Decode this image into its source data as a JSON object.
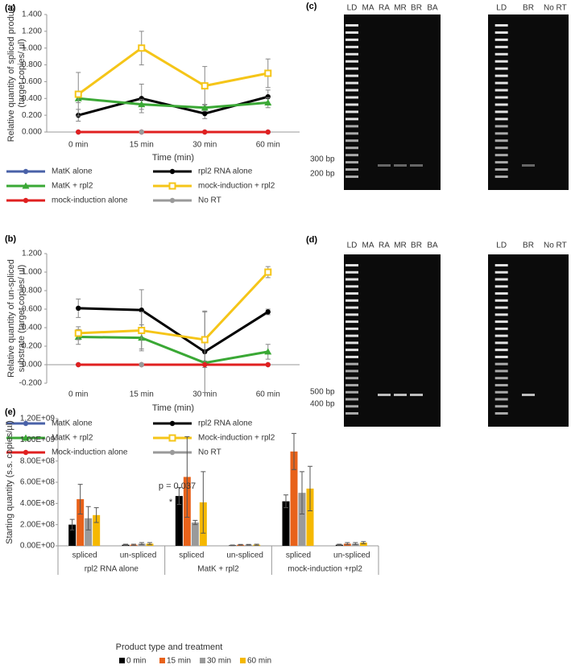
{
  "chart_data": [
    {
      "type": "line",
      "label": "(a)",
      "xlabel": "Time (min)",
      "ylabel": [
        "Relative quantity of spliced product",
        "(target copies/ µl)"
      ],
      "categories": [
        "0 min",
        "15 min",
        "30 min",
        "60 min"
      ],
      "ylim": [
        0,
        1.4
      ],
      "yticks": [
        {
          "value": 0,
          "label": "0.000"
        },
        {
          "value": 0.2,
          "label": "0.200"
        },
        {
          "value": 0.4,
          "label": "0.400"
        },
        {
          "value": 0.6,
          "label": "0.600"
        },
        {
          "value": 0.8,
          "label": "0.800"
        },
        {
          "value": 1.0,
          "label": "1.000"
        },
        {
          "value": 1.2,
          "label": "1.200"
        },
        {
          "value": 1.4,
          "label": "1.400"
        }
      ],
      "grid": false,
      "series": [
        {
          "name": "MatK alone",
          "color": "#4a62a8",
          "marker": "circle",
          "values": [
            0,
            0,
            0,
            0
          ]
        },
        {
          "name": "rpl2 RNA alone",
          "color": "#000000",
          "marker": "circle",
          "values": [
            0.2,
            0.4,
            0.22,
            0.42
          ],
          "errors": [
            0.07,
            0.17,
            0.06,
            0.08
          ]
        },
        {
          "name": "MatK + rpl2",
          "color": "#3aa835",
          "marker": "triangle",
          "values": [
            0.4,
            0.33,
            0.29,
            0.35
          ],
          "errors": [
            0.05,
            0.06,
            0.04,
            0.06
          ]
        },
        {
          "name": "mock-induction + rpl2",
          "color": "#f5c518",
          "marker": "square",
          "values": [
            0.45,
            1.0,
            0.55,
            0.7
          ],
          "errors": [
            0.26,
            0.2,
            0.23,
            0.17
          ]
        },
        {
          "name": "mock-induction alone",
          "color": "#e02020",
          "marker": "circle",
          "values": [
            0,
            0,
            0,
            0
          ]
        },
        {
          "name": "No RT",
          "color": "#9a9a9a",
          "marker": "circle",
          "values": [
            null,
            0,
            null,
            null
          ]
        }
      ]
    },
    {
      "type": "line",
      "label": "(b)",
      "xlabel": "Time (min)",
      "ylabel": [
        "Relative quantity of un-spliced",
        "substrate (target copies/ µl)"
      ],
      "categories": [
        "0 min",
        "15 min",
        "30 min",
        "60 min"
      ],
      "ylim": [
        -0.2,
        1.2
      ],
      "yticks": [
        {
          "value": -0.2,
          "label": "-0.200"
        },
        {
          "value": 0,
          "label": "0.000"
        },
        {
          "value": 0.2,
          "label": "0.200"
        },
        {
          "value": 0.4,
          "label": "0.400"
        },
        {
          "value": 0.6,
          "label": "0.600"
        },
        {
          "value": 0.8,
          "label": "0.800"
        },
        {
          "value": 1.0,
          "label": "1.000"
        },
        {
          "value": 1.2,
          "label": "1.200"
        }
      ],
      "grid": false,
      "series": [
        {
          "name": "MatK alone",
          "color": "#4a62a8",
          "marker": "circle",
          "values": [
            0,
            0,
            0,
            0
          ]
        },
        {
          "name": "rpl2 RNA alone",
          "color": "#000000",
          "marker": "circle",
          "values": [
            0.61,
            0.59,
            0.14,
            0.57
          ],
          "errors": [
            0.1,
            0.22,
            0.44,
            0.03
          ]
        },
        {
          "name": "MatK + rpl2",
          "color": "#3aa835",
          "marker": "triangle",
          "values": [
            0.3,
            0.29,
            0.02,
            0.14
          ],
          "errors": [
            0.08,
            0.14,
            0.02,
            0.08
          ]
        },
        {
          "name": "Mock-induction + rpl2",
          "color": "#f5c518",
          "marker": "square",
          "values": [
            0.34,
            0.37,
            0.27,
            1.0
          ],
          "errors": [
            0.07,
            0.2,
            0.3,
            0.06
          ]
        },
        {
          "name": "Mock-induction alone",
          "color": "#e02020",
          "marker": "circle",
          "values": [
            0,
            0,
            0,
            0
          ]
        },
        {
          "name": "No RT",
          "color": "#9a9a9a",
          "marker": "circle",
          "values": [
            null,
            0,
            null,
            null
          ]
        }
      ]
    },
    {
      "type": "bar",
      "label": "(e)",
      "xlabel": "Product type and treatment",
      "ylabel": "Starting quantity (s.s. copies/µl)",
      "categories": [
        "spliced",
        "un-spliced",
        "spliced",
        "un-spliced",
        "spliced",
        "un-spliced"
      ],
      "groups": [
        "rpl2 RNA alone",
        "MatK + rpl2",
        "mock-induction +rpl2"
      ],
      "ylim": [
        0,
        1200000000
      ],
      "yticks": [
        {
          "value": 0,
          "label": "0.00E+00"
        },
        {
          "value": 200000000,
          "label": "2.00E+08"
        },
        {
          "value": 400000000,
          "label": "4.00E+08"
        },
        {
          "value": 600000000,
          "label": "6.00E+08"
        },
        {
          "value": 800000000,
          "label": "8.00E+08"
        },
        {
          "value": 1000000000,
          "label": "1.00E+09"
        },
        {
          "value": 1200000000,
          "label": "1.20E+09"
        }
      ],
      "annotations": [
        "p = 0.037",
        "*"
      ],
      "series": [
        {
          "name": "0 min",
          "color": "#000000",
          "values": [
            200000000,
            10000000,
            470000000,
            5000000,
            420000000,
            10000000
          ],
          "errors": [
            50000000,
            5000000,
            80000000,
            3000000,
            60000000,
            5000000
          ]
        },
        {
          "name": "15 min",
          "color": "#e8621a",
          "values": [
            440000000,
            10000000,
            650000000,
            10000000,
            890000000,
            20000000
          ],
          "errors": [
            140000000,
            5000000,
            380000000,
            3000000,
            170000000,
            10000000
          ]
        },
        {
          "name": "30 min",
          "color": "#9a9a9a",
          "values": [
            260000000,
            20000000,
            220000000,
            10000000,
            500000000,
            20000000
          ],
          "errors": [
            110000000,
            10000000,
            20000000,
            3000000,
            200000000,
            10000000
          ]
        },
        {
          "name": "60 min",
          "color": "#f5b800",
          "values": [
            290000000,
            20000000,
            410000000,
            10000000,
            540000000,
            30000000
          ],
          "errors": [
            70000000,
            10000000,
            290000000,
            5000000,
            210000000,
            10000000
          ]
        }
      ]
    }
  ],
  "gels": [
    {
      "label": "(c)",
      "lanes_left": [
        "LD",
        "MA",
        "RA",
        "MR",
        "BR",
        "BA"
      ],
      "lanes_right": [
        "LD",
        "BR",
        "No RT"
      ],
      "markers": [
        "300 bp",
        "200 bp"
      ]
    },
    {
      "label": "(d)",
      "lanes_left": [
        "LD",
        "MA",
        "RA",
        "MR",
        "BR",
        "BA"
      ],
      "lanes_right": [
        "LD",
        "BR",
        "No RT"
      ],
      "markers": [
        "500 bp",
        "400 bp"
      ]
    }
  ]
}
